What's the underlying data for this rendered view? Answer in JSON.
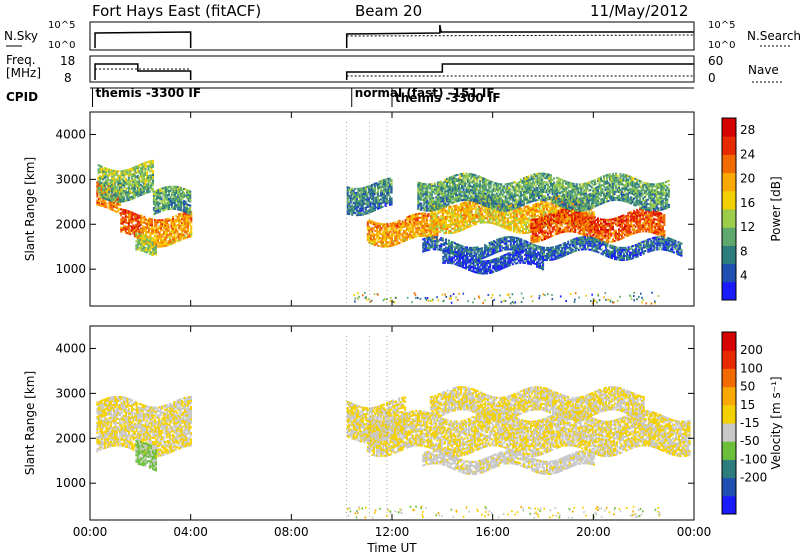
{
  "header": {
    "radar": "Fort Hays East (fitACF)",
    "beam": "Beam 20",
    "date": "11/May/2012"
  },
  "labels": {
    "nsky": "N.Sky",
    "freq_line1": "Freq.",
    "freq_line2": "[MHz]",
    "cpid": "CPID",
    "nsearch": "N.Search",
    "nave": "Nave",
    "time_axis": "Time UT"
  },
  "noise_axis": {
    "left_ticks": [
      "10^5",
      "10^0"
    ],
    "right_ticks": [
      "10^5",
      "10^0"
    ]
  },
  "freq_axis": {
    "left_ticks": [
      "18",
      "8"
    ],
    "right_ticks": [
      "60",
      "0"
    ]
  },
  "cpid_labels": [
    {
      "t": 0.1,
      "text": "themis -3300 IF"
    },
    {
      "t": 10.4,
      "text": "normal (fast) -151 IF"
    },
    {
      "t": 12.0,
      "text": "themis -3300 IF"
    }
  ],
  "chart_data": [
    {
      "type": "heatmap",
      "name": "power-panel",
      "ylabel": "Slant Range [km]",
      "xlabel": "Time UT",
      "xlim": [
        0,
        24
      ],
      "ylim": [
        180,
        4500
      ],
      "x_ticks": [
        "00:00",
        "04:00",
        "08:00",
        "12:00",
        "16:00",
        "20:00",
        "00:00"
      ],
      "y_ticks": [
        1000,
        2000,
        3000,
        4000
      ],
      "colorbar": {
        "label": "Power [dB]",
        "range": [
          0,
          30
        ],
        "ticks": [
          "4",
          "8",
          "12",
          "16",
          "20",
          "24",
          "28"
        ],
        "colors": [
          "#1a1aff",
          "#1f4fb0",
          "#2e7d7d",
          "#5fa86e",
          "#9ccc4a",
          "#f4d000",
          "#f9a800",
          "#f26a00",
          "#e82a00",
          "#d60000"
        ]
      },
      "bands": [
        {
          "t0": 0.25,
          "t1": 1.2,
          "r0": 2300,
          "r1": 2800,
          "p": 22
        },
        {
          "t0": 1.2,
          "t1": 2.0,
          "r0": 1700,
          "r1": 2200,
          "p": 24
        },
        {
          "t0": 2.0,
          "t1": 4.0,
          "r0": 1600,
          "r1": 2200,
          "p": 20
        },
        {
          "t0": 0.3,
          "t1": 2.5,
          "r0": 2600,
          "r1": 3300,
          "p": 12
        },
        {
          "t0": 2.5,
          "t1": 4.0,
          "r0": 2200,
          "r1": 2700,
          "p": 10
        },
        {
          "t0": 1.8,
          "t1": 2.6,
          "r0": 1300,
          "r1": 1700,
          "p": 14
        },
        {
          "t0": 10.2,
          "t1": 12.0,
          "r0": 2300,
          "r1": 2900,
          "p": 8
        },
        {
          "t0": 11.0,
          "t1": 13.8,
          "r0": 1600,
          "r1": 2100,
          "p": 20
        },
        {
          "t0": 13.5,
          "t1": 20.0,
          "r0": 1900,
          "r1": 2500,
          "p": 18
        },
        {
          "t0": 17.5,
          "t1": 22.8,
          "r0": 1700,
          "r1": 2200,
          "p": 24
        },
        {
          "t0": 13.0,
          "t1": 23.0,
          "r0": 2400,
          "r1": 3000,
          "p": 10
        },
        {
          "t0": 13.2,
          "t1": 23.5,
          "r0": 1300,
          "r1": 1600,
          "p": 6
        },
        {
          "t0": 14.0,
          "t1": 18.0,
          "r0": 1000,
          "r1": 1300,
          "p": 4
        }
      ]
    },
    {
      "type": "heatmap",
      "name": "velocity-panel",
      "ylabel": "Slant Range [km]",
      "xlabel": "Time UT",
      "xlim": [
        0,
        24
      ],
      "ylim": [
        180,
        4500
      ],
      "x_ticks": [
        "00:00",
        "04:00",
        "08:00",
        "12:00",
        "16:00",
        "20:00",
        "00:00"
      ],
      "y_ticks": [
        1000,
        2000,
        3000,
        4000
      ],
      "colorbar": {
        "label": "Velocity [m s⁻¹]",
        "range": [
          -250,
          250
        ],
        "ticks": [
          "200",
          "100",
          "50",
          "15",
          "-15",
          "-50",
          "-100",
          "-200"
        ],
        "colors": [
          "#1a1aff",
          "#1f4fb0",
          "#2e7d7d",
          "#6bbf3a",
          "#c8c8c8",
          "#f4d000",
          "#f9a800",
          "#f26a00",
          "#e82a00",
          "#d60000"
        ]
      },
      "bands": [
        {
          "t0": 0.25,
          "t1": 4.0,
          "r0": 1700,
          "r1": 2800,
          "v": 0
        },
        {
          "t0": 1.8,
          "t1": 2.6,
          "r0": 1300,
          "r1": 1800,
          "v": -60
        },
        {
          "t0": 10.2,
          "t1": 12.5,
          "r0": 2000,
          "r1": 2800,
          "v": 0
        },
        {
          "t0": 11.0,
          "t1": 23.8,
          "r0": 1700,
          "r1": 2500,
          "v": 0
        },
        {
          "t0": 13.5,
          "t1": 22.0,
          "r0": 2500,
          "r1": 3000,
          "v": 0
        },
        {
          "t0": 13.2,
          "t1": 20.0,
          "r0": 1300,
          "r1": 1600,
          "v": -20
        }
      ]
    }
  ]
}
